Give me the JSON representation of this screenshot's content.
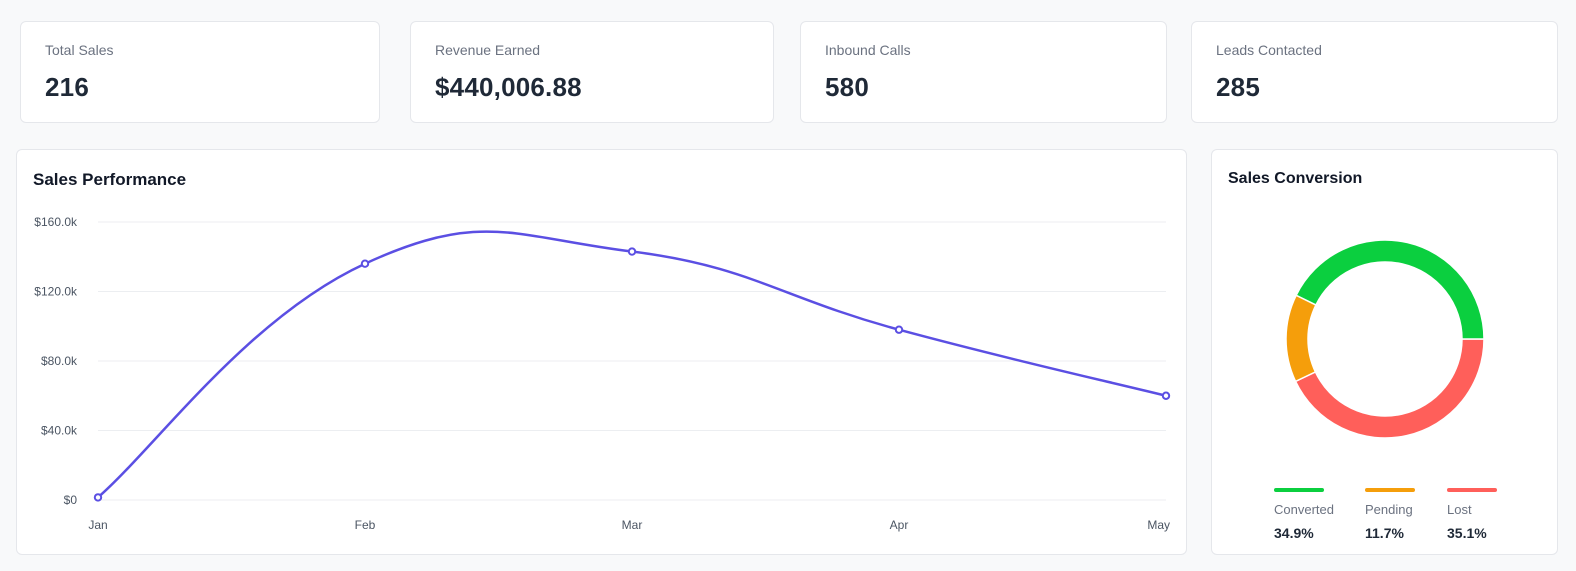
{
  "stats": [
    {
      "label": "Total Sales",
      "value": "216"
    },
    {
      "label": "Revenue Earned",
      "value": "$440,006.88"
    },
    {
      "label": "Inbound Calls",
      "value": "580"
    },
    {
      "label": "Leads Contacted",
      "value": "285"
    }
  ],
  "sales_performance": {
    "title": "Sales Performance"
  },
  "sales_conversion": {
    "title": "Sales Conversion",
    "legend": [
      {
        "label": "Converted",
        "value": "34.9%",
        "color": "#0bcf3f"
      },
      {
        "label": "Pending",
        "value": "11.7%",
        "color": "#f59e0b"
      },
      {
        "label": "Lost",
        "value": "35.1%",
        "color": "#ff5f5a"
      }
    ]
  },
  "chart_data": [
    {
      "type": "line",
      "title": "Sales Performance",
      "categories": [
        "Jan",
        "Feb",
        "Mar",
        "Apr",
        "May"
      ],
      "values": [
        1500,
        136000,
        143000,
        98000,
        60000
      ],
      "yticks": [
        "$0",
        "$40.0k",
        "$80.0k",
        "$120.0k",
        "$160.0k"
      ],
      "ylim": [
        0,
        160000
      ],
      "grid": true,
      "color": "#5b4fe3"
    },
    {
      "type": "pie",
      "title": "Sales Conversion",
      "donut": true,
      "categories": [
        "Converted",
        "Pending",
        "Lost"
      ],
      "values": [
        34.9,
        11.7,
        35.1
      ],
      "colors": [
        "#0bcf3f",
        "#f59e0b",
        "#ff5f5a"
      ]
    }
  ]
}
